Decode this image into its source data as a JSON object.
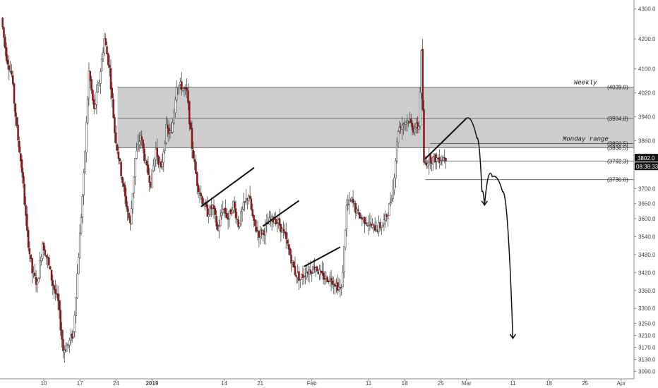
{
  "chart_data": {
    "type": "candlestick",
    "title": "",
    "ylim": [
      3065,
      4330
    ],
    "y_ticks": [
      4300,
      4200,
      4100,
      4020,
      3940,
      3860,
      3780,
      3700,
      3650,
      3600,
      3540,
      3480,
      3420,
      3360,
      3300,
      3250,
      3210,
      3170,
      3130,
      3090
    ],
    "y_tick_labels": [
      "4300.0",
      "4200.0",
      "4100.0",
      "4020.0",
      "3940.0",
      "3860.0",
      "3780.0",
      "3700.0",
      "3650.0",
      "3600.0",
      "3540.0",
      "3480.0",
      "3420.0",
      "3360.0",
      "3300.0",
      "3250.0",
      "3210.0",
      "3170.0",
      "3130.0",
      "3090.0"
    ],
    "x_ticks": [
      {
        "day": 10,
        "label": "10"
      },
      {
        "day": 17,
        "label": "17"
      },
      {
        "day": 24,
        "label": "24"
      },
      {
        "day": 31,
        "label": "2019"
      },
      {
        "day": 45,
        "label": "14"
      },
      {
        "day": 52,
        "label": "21"
      },
      {
        "day": 62,
        "label": "Feb"
      },
      {
        "day": 73,
        "label": "11"
      },
      {
        "day": 80,
        "label": "18"
      },
      {
        "day": 87,
        "label": "25"
      },
      {
        "day": 92,
        "label": "Mar"
      },
      {
        "day": 101,
        "label": "11"
      },
      {
        "day": 108,
        "label": "18"
      },
      {
        "day": 115,
        "label": "25"
      },
      {
        "day": 122,
        "label": "Apr"
      }
    ],
    "x_range": [
      1.5,
      124.5
    ],
    "candle_interval_days": 0.25,
    "anchors": [
      [
        2,
        4270
      ],
      [
        3,
        4140
      ],
      [
        4,
        4080
      ],
      [
        5,
        3900
      ],
      [
        6,
        3760
      ],
      [
        7,
        3550
      ],
      [
        8,
        3420
      ],
      [
        9,
        3380
      ],
      [
        10,
        3520
      ],
      [
        11,
        3460
      ],
      [
        12,
        3380
      ],
      [
        13,
        3320
      ],
      [
        14,
        3160
      ],
      [
        15,
        3180
      ],
      [
        16,
        3220
      ],
      [
        17,
        3480
      ],
      [
        18,
        3740
      ],
      [
        19,
        4090
      ],
      [
        20,
        3960
      ],
      [
        21,
        4060
      ],
      [
        22,
        4200
      ],
      [
        23,
        4100
      ],
      [
        24,
        3890
      ],
      [
        25,
        3780
      ],
      [
        26,
        3670
      ],
      [
        27,
        3580
      ],
      [
        28,
        3800
      ],
      [
        29,
        3880
      ],
      [
        30,
        3780
      ],
      [
        31,
        3720
      ],
      [
        32,
        3830
      ],
      [
        33,
        3760
      ],
      [
        34,
        3900
      ],
      [
        35,
        3880
      ],
      [
        36,
        4050
      ],
      [
        37,
        4040
      ],
      [
        38,
        4020
      ],
      [
        39,
        3840
      ],
      [
        40,
        3720
      ],
      [
        41,
        3660
      ],
      [
        42,
        3620
      ],
      [
        43,
        3640
      ],
      [
        44,
        3560
      ],
      [
        45,
        3640
      ],
      [
        46,
        3600
      ],
      [
        47,
        3650
      ],
      [
        48,
        3580
      ],
      [
        49,
        3640
      ],
      [
        50,
        3680
      ],
      [
        51,
        3580
      ],
      [
        52,
        3550
      ],
      [
        53,
        3560
      ],
      [
        54,
        3590
      ],
      [
        55,
        3600
      ],
      [
        56,
        3580
      ],
      [
        57,
        3540
      ],
      [
        58,
        3480
      ],
      [
        59,
        3420
      ],
      [
        60,
        3400
      ],
      [
        61,
        3420
      ],
      [
        62,
        3430
      ],
      [
        63,
        3440
      ],
      [
        64,
        3410
      ],
      [
        65,
        3400
      ],
      [
        66,
        3400
      ],
      [
        67,
        3380
      ],
      [
        68,
        3360
      ],
      [
        69,
        3640
      ],
      [
        70,
        3660
      ],
      [
        71,
        3620
      ],
      [
        72,
        3600
      ],
      [
        73,
        3590
      ],
      [
        74,
        3570
      ],
      [
        75,
        3570
      ],
      [
        76,
        3580
      ],
      [
        77,
        3620
      ],
      [
        78,
        3700
      ],
      [
        79,
        3900
      ],
      [
        80,
        3920
      ],
      [
        81,
        3930
      ],
      [
        82,
        3900
      ],
      [
        83,
        3910
      ],
      [
        83.5,
        4150
      ],
      [
        84,
        3780
      ],
      [
        85,
        3800
      ],
      [
        86,
        3800
      ],
      [
        87,
        3800
      ],
      [
        88,
        3805
      ]
    ],
    "zones": [
      {
        "label": "Weekly",
        "value_label": "(4039.0)",
        "top": 4039.0,
        "bottom": 3836.5
      },
      {
        "label": "Monday range",
        "value_label": "(3836.5)",
        "top": 3934.8,
        "bottom": 3836.5
      }
    ],
    "levels": [
      {
        "value": 4039.0,
        "label": "(4039.0)"
      },
      {
        "value": 3934.8,
        "label": "(3934.8)"
      },
      {
        "value": 3850.5,
        "label": "(3850.5)"
      },
      {
        "value": 3836.5,
        "label": "(3836.5)"
      },
      {
        "value": 3792.3,
        "label": "(3792.3)"
      },
      {
        "value": 3730.0,
        "label": "(3730.0)"
      }
    ],
    "last_price": {
      "value": 3802.0,
      "label": "3802.0",
      "countdown": "08:38:33"
    },
    "trend_lines": [
      {
        "x1": 40.5,
        "y1": 3640,
        "x2": 50.8,
        "y2": 3770
      },
      {
        "x1": 52.5,
        "y1": 3575,
        "x2": 59.5,
        "y2": 3660
      },
      {
        "x1": 60.5,
        "y1": 3440,
        "x2": 67.5,
        "y2": 3505
      },
      {
        "x1": 84.0,
        "y1": 3800,
        "x2": 92.0,
        "y2": 3935
      }
    ],
    "projection_paths": [
      {
        "points": [
          [
            92.0,
            3935
          ],
          [
            94,
            3870
          ],
          [
            95,
            3690
          ],
          [
            95.5,
            3645
          ]
        ]
      },
      {
        "points": [
          [
            95.5,
            3645
          ],
          [
            97,
            3740
          ],
          [
            99,
            3690
          ],
          [
            101,
            3200
          ]
        ]
      }
    ],
    "colors": {
      "up": "#ffffff",
      "down": "#c30000",
      "border": "#333333",
      "zone": "#bcbcbc",
      "zone_line": "#555555"
    }
  }
}
